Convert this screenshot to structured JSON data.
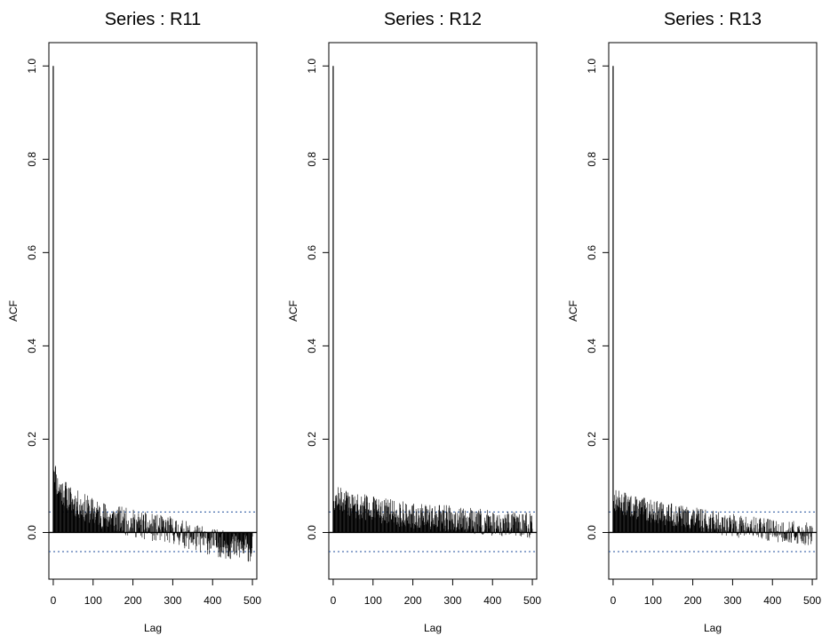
{
  "chart_data": [
    {
      "type": "bar",
      "title": "Series : R11",
      "xlabel": "Lag",
      "ylabel": "ACF",
      "xlim": [
        -11,
        511
      ],
      "ylim": [
        -0.1,
        1.05
      ],
      "xticks": [
        0,
        100,
        200,
        300,
        400,
        500
      ],
      "xtick_labels": [
        "0",
        "100",
        "200",
        "300",
        "400",
        "500"
      ],
      "yticks": [
        0.0,
        0.2,
        0.4,
        0.6,
        0.8,
        1.0
      ],
      "ytick_labels": [
        "0.0",
        "0.2",
        "0.4",
        "0.6",
        "0.8",
        "1.0"
      ],
      "ci_bounds": [
        0.044,
        -0.041
      ],
      "ci_color": "#1f4e9c",
      "max_lag": 500,
      "lag0_value": 1.0,
      "trend": [
        [
          1,
          0.15
        ],
        [
          10,
          0.1
        ],
        [
          50,
          0.065
        ],
        [
          100,
          0.045
        ],
        [
          150,
          0.03
        ],
        [
          200,
          0.02
        ],
        [
          250,
          0.01
        ],
        [
          300,
          0.005
        ],
        [
          350,
          -0.01
        ],
        [
          400,
          -0.02
        ],
        [
          450,
          -0.03
        ],
        [
          500,
          -0.035
        ]
      ],
      "noise_amplitude": 0.03,
      "seed": 11
    },
    {
      "type": "bar",
      "title": "Series : R12",
      "xlabel": "Lag",
      "ylabel": "ACF",
      "xlim": [
        -11,
        511
      ],
      "ylim": [
        -0.1,
        1.05
      ],
      "xticks": [
        0,
        100,
        200,
        300,
        400,
        500
      ],
      "xtick_labels": [
        "0",
        "100",
        "200",
        "300",
        "400",
        "500"
      ],
      "yticks": [
        0.0,
        0.2,
        0.4,
        0.6,
        0.8,
        1.0
      ],
      "ytick_labels": [
        "0.0",
        "0.2",
        "0.4",
        "0.6",
        "0.8",
        "1.0"
      ],
      "ci_bounds": [
        0.044,
        -0.041
      ],
      "ci_color": "#1f4e9c",
      "max_lag": 500,
      "lag0_value": 1.0,
      "trend": [
        [
          1,
          0.075
        ],
        [
          50,
          0.06
        ],
        [
          100,
          0.05
        ],
        [
          200,
          0.035
        ],
        [
          300,
          0.03
        ],
        [
          400,
          0.02
        ],
        [
          500,
          0.015
        ]
      ],
      "noise_amplitude": 0.028,
      "seed": 12
    },
    {
      "type": "bar",
      "title": "Series : R13",
      "xlabel": "Lag",
      "ylabel": "ACF",
      "xlim": [
        -11,
        511
      ],
      "ylim": [
        -0.1,
        1.05
      ],
      "xticks": [
        0,
        100,
        200,
        300,
        400,
        500
      ],
      "xtick_labels": [
        "0",
        "100",
        "200",
        "300",
        "400",
        "500"
      ],
      "yticks": [
        0.0,
        0.2,
        0.4,
        0.6,
        0.8,
        1.0
      ],
      "ytick_labels": [
        "0.0",
        "0.2",
        "0.4",
        "0.6",
        "0.8",
        "1.0"
      ],
      "ci_bounds": [
        0.044,
        -0.041
      ],
      "ci_color": "#1f4e9c",
      "max_lag": 500,
      "lag0_value": 1.0,
      "trend": [
        [
          1,
          0.07
        ],
        [
          50,
          0.055
        ],
        [
          100,
          0.045
        ],
        [
          200,
          0.03
        ],
        [
          300,
          0.015
        ],
        [
          400,
          0.005
        ],
        [
          500,
          -0.005
        ]
      ],
      "noise_amplitude": 0.025,
      "seed": 13
    }
  ]
}
